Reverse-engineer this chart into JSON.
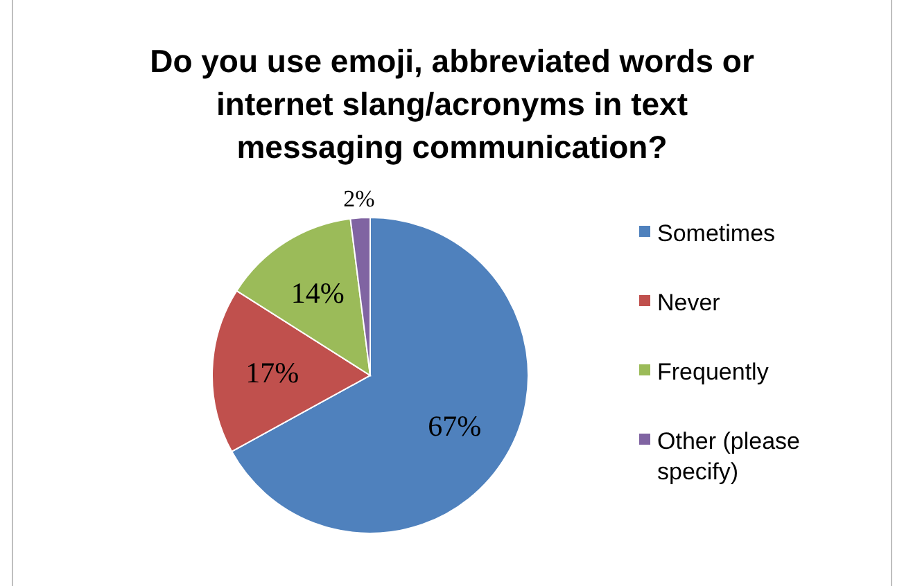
{
  "chart_data": {
    "type": "pie",
    "title": "Do you use emoji, abbreviated words or internet slang/acronyms in text messaging communication?",
    "categories": [
      "Sometimes",
      "Never",
      "Frequently",
      "Other (please specify)"
    ],
    "values": [
      67,
      17,
      14,
      2
    ],
    "colors": [
      "#4f81bd",
      "#c0504d",
      "#9bbb59",
      "#8064a2"
    ],
    "value_labels": [
      "67%",
      "17%",
      "14%",
      "2%"
    ],
    "legend": "right"
  }
}
